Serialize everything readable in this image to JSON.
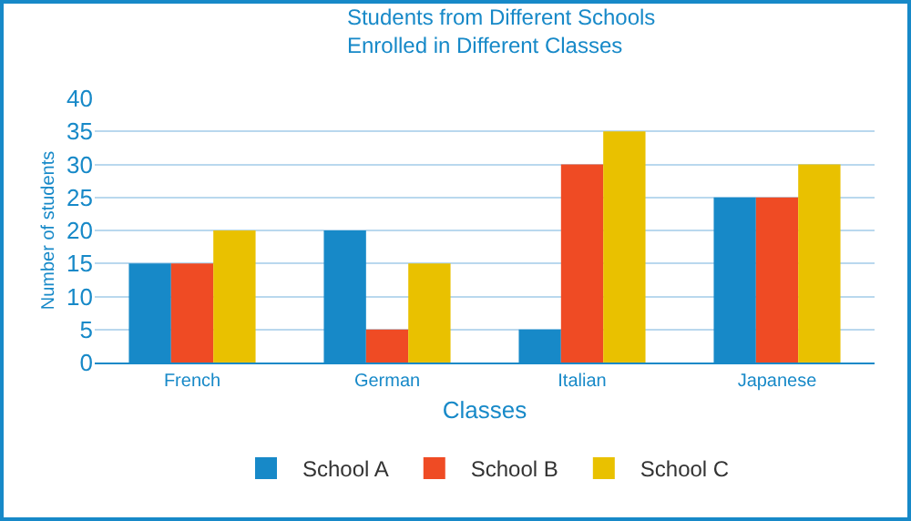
{
  "chart_data": {
    "type": "bar",
    "title": "Students from Different Schools\nEnrolled in Different Classes",
    "xlabel": "Classes",
    "ylabel": "Number of students",
    "categories": [
      "French",
      "German",
      "Italian",
      "Japanese"
    ],
    "series": [
      {
        "name": "School A",
        "color": "#1789c8",
        "values": [
          15,
          20,
          5,
          25
        ]
      },
      {
        "name": "School B",
        "color": "#ef4b24",
        "values": [
          15,
          5,
          30,
          25
        ]
      },
      {
        "name": "School C",
        "color": "#e9c100",
        "values": [
          20,
          15,
          35,
          30
        ]
      }
    ],
    "ylim": [
      0,
      40
    ],
    "yticks": [
      0,
      5,
      10,
      15,
      20,
      25,
      30,
      35,
      40
    ],
    "grid": "y",
    "legend": "bottom"
  }
}
